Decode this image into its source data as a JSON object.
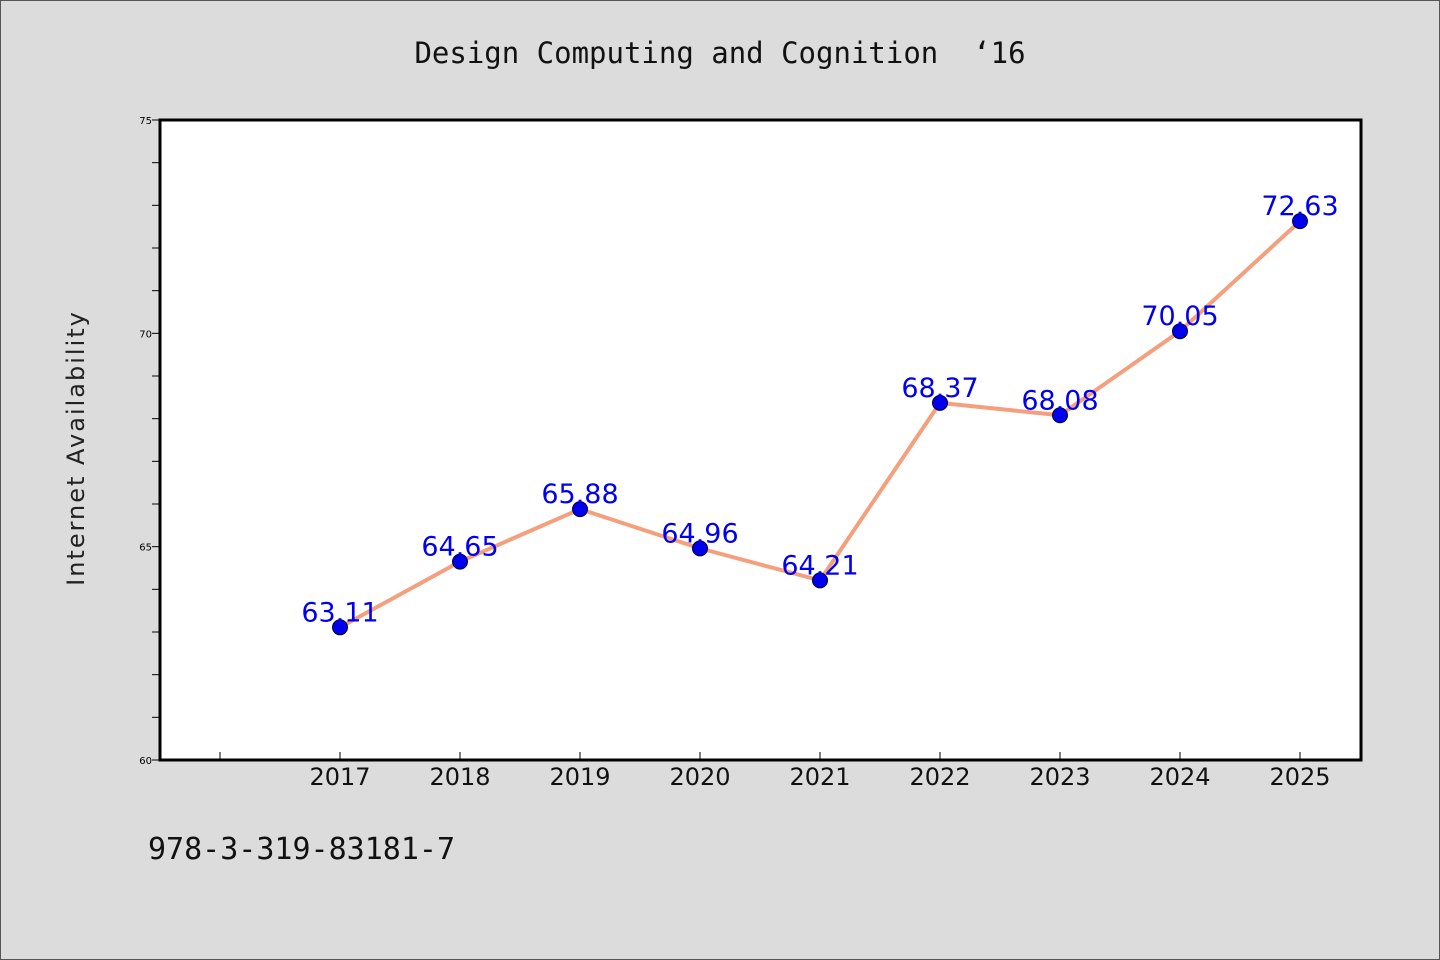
{
  "chart_data": {
    "type": "line",
    "title": "Design Computing and Cognition  ‘16",
    "xlabel": "",
    "ylabel": "Internet Availability",
    "x": [
      "2017",
      "2018",
      "2019",
      "2020",
      "2021",
      "2022",
      "2023",
      "2024",
      "2025"
    ],
    "series": [
      {
        "values": [
          63.11,
          64.65,
          65.88,
          64.96,
          64.21,
          68.37,
          68.08,
          70.05,
          72.63
        ],
        "data_labels": [
          "63.11",
          "64.65",
          "65.88",
          "64.96",
          "64.21",
          "68.37",
          "68.08",
          "70.05",
          "72.63"
        ],
        "line_color": "#f4a07e",
        "marker_color": "#0000ee",
        "label_color": "#0000ee"
      }
    ],
    "ylim": [
      60,
      75
    ],
    "yticks": [
      "60",
      "65",
      "70",
      "75"
    ],
    "grid": false,
    "legend": "none"
  },
  "footer": {
    "isbn": "978-3-319-83181-7"
  }
}
